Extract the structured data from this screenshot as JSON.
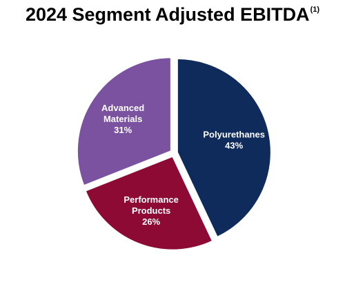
{
  "title": {
    "text": "2024 Segment Adjusted EBITDA",
    "footnote": "(1)"
  },
  "chart_data": {
    "type": "pie",
    "title": "2024 Segment Adjusted EBITDA",
    "start": "12 o'clock",
    "direction": "clockwise",
    "exploded": true,
    "slices": [
      {
        "name": "Polyurethanes",
        "value": 43,
        "value_label": "43%",
        "label_lines": [
          "Polyurethanes",
          "43%"
        ],
        "color": "#0f2b5c"
      },
      {
        "name": "Performance Products",
        "value": 26,
        "value_label": "26%",
        "label_lines": [
          "Performance",
          "Products",
          "26%"
        ],
        "color": "#8c0a34"
      },
      {
        "name": "Advanced Materials",
        "value": 31,
        "value_label": "31%",
        "label_lines": [
          "Advanced",
          "Materials",
          "31%"
        ],
        "color": "#7b52a0"
      }
    ]
  }
}
